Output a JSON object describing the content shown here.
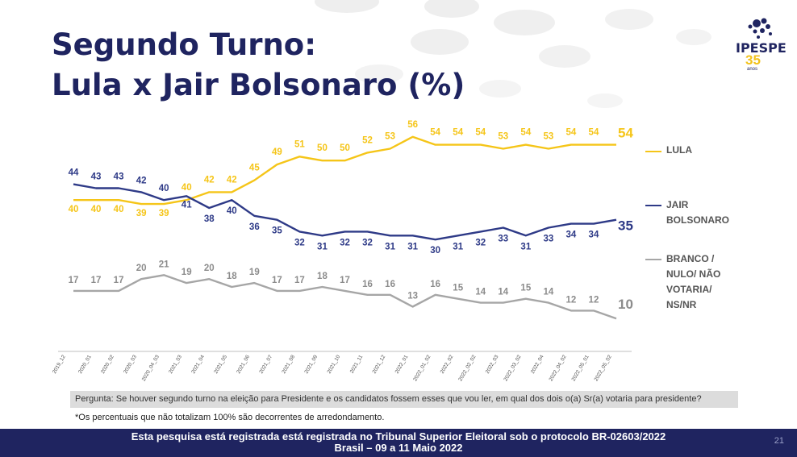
{
  "slide": {
    "title_line1": "Segundo Turno:",
    "title_line2": "Lula x Jair Bolsonaro (%)",
    "logo_name": "IPESPE",
    "logo_number": "35",
    "logo_suffix": "anos",
    "question": "Pergunta:  Se houver segundo turno na eleição para Presidente e os candidatos fossem esses que vou ler, em qual dos dois o(a) Sr(a) votaria para presidente?",
    "footnote": "*Os percentuais que não totalizam 100% são decorrentes de arredondamento.",
    "footer_line1": "Esta pesquisa está registrada está registrada no Tribunal Superior Eleitoral sob o protocolo BR-02603/2022",
    "footer_line2": "Brasil – 09 a 11 Maio 2022",
    "page_number": "21"
  },
  "legend": {
    "lula": "LULA",
    "jair_line1": "JAIR",
    "jair_line2": "BOLSONARO",
    "branco_line1": "BRANCO /",
    "branco_line2": "NULO/ NÃO",
    "branco_line3": "VOTARIA/",
    "branco_line4": "NS/NR"
  },
  "chart_data": {
    "type": "line",
    "x": [
      "2019_12",
      "2020_01",
      "2020_02",
      "2020_03",
      "2020_04_03",
      "2021_03",
      "2021_04",
      "2021_05",
      "2021_06",
      "2021_07",
      "2021_08",
      "2021_09",
      "2021_10",
      "2021_11",
      "2021_12",
      "2022_01",
      "2022_01_02",
      "2022_02",
      "2022_02_02",
      "2022_03",
      "2022_03_02",
      "2022_04",
      "2022_04_02",
      "2022_05_01",
      "2022_05_02"
    ],
    "series": [
      {
        "name": "LULA",
        "color": "#f5c518",
        "values": [
          40,
          40,
          40,
          39,
          39,
          40,
          42,
          42,
          45,
          49,
          51,
          50,
          50,
          52,
          53,
          56,
          54,
          54,
          54,
          53,
          54,
          53,
          54,
          54,
          54
        ]
      },
      {
        "name": "JAIR BOLSONARO",
        "color": "#2e3a87",
        "values": [
          44,
          43,
          43,
          42,
          40,
          41,
          38,
          40,
          36,
          35,
          32,
          31,
          32,
          32,
          31,
          31,
          30,
          31,
          32,
          33,
          31,
          33,
          34,
          34,
          35
        ]
      },
      {
        "name": "BRANCO / NULO/ NÃO VOTARIA/ NS/NR",
        "color": "#a6a6a6",
        "values": [
          17,
          17,
          17,
          20,
          21,
          19,
          20,
          18,
          19,
          17,
          17,
          18,
          17,
          16,
          16,
          13,
          16,
          15,
          14,
          14,
          15,
          14,
          12,
          12,
          10
        ]
      }
    ],
    "grid": false,
    "legend_position": "right"
  }
}
